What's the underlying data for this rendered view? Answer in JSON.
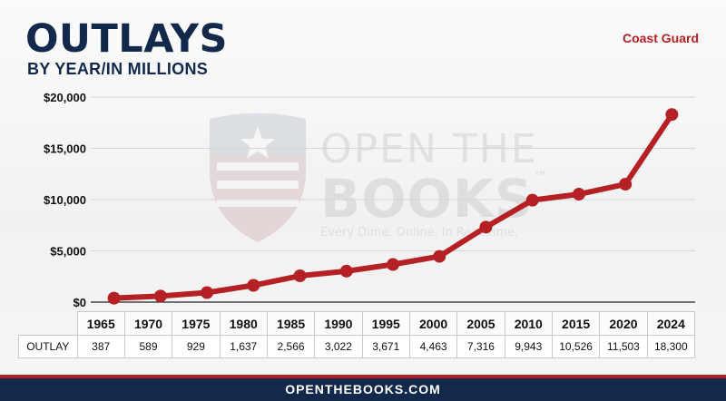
{
  "header": {
    "title": "OUTLAYS",
    "subtitle": "BY YEAR/IN MILLIONS",
    "agency": "Coast Guard"
  },
  "watermark": {
    "line1": "OPEN THE",
    "line2": "BOOKS",
    "trademark": "™",
    "tagline": "Every Dime. Online. In Real Time."
  },
  "table": {
    "row_label": "OUTLAY"
  },
  "footer": {
    "text": "OPENTHEBOOKS.COM"
  },
  "colors": {
    "navy": "#13294b",
    "line": "#b52025",
    "gridline": "#d6d6d6"
  },
  "chart_data": {
    "type": "line",
    "title": "OUTLAYS",
    "subtitle": "BY YEAR/IN MILLIONS",
    "x": [
      "1965",
      "1970",
      "1975",
      "1980",
      "1985",
      "1990",
      "1995",
      "2000",
      "2005",
      "2010",
      "2015",
      "2020",
      "2024"
    ],
    "series": [
      {
        "values": [
          387,
          589,
          929,
          1637,
          2566,
          3022,
          3671,
          4463,
          7316,
          9943,
          10526,
          11503,
          18300
        ],
        "labels": [
          "387",
          "589",
          "929",
          "1,637",
          "2,566",
          "3,022",
          "3,671",
          "4,463",
          "7,316",
          "9,943",
          "10,526",
          "11,503",
          "18,300"
        ]
      }
    ],
    "ylim": [
      0,
      20000
    ],
    "yticks": [
      0,
      5000,
      10000,
      15000,
      20000
    ],
    "ytick_labels": [
      "$0",
      "$5,000",
      "$10,000",
      "$15,000",
      "$20,000"
    ],
    "grid": true,
    "legend": "none"
  }
}
